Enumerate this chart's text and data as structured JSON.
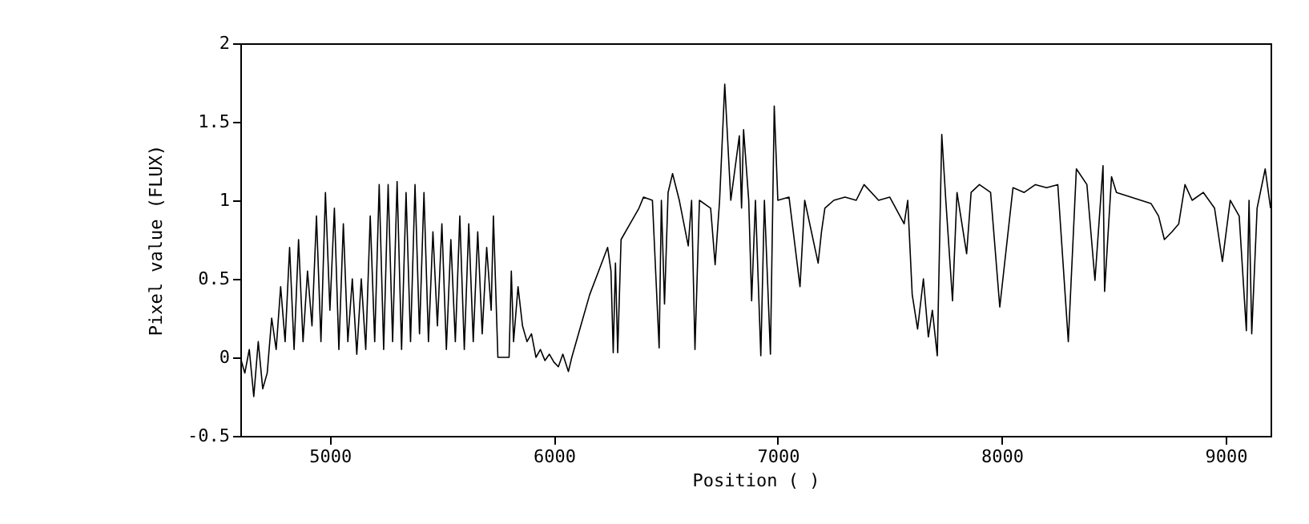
{
  "chart_data": {
    "type": "line",
    "xlabel": "Position ( )",
    "ylabel": "Pixel value (FLUX)",
    "xlim": [
      4600,
      9200
    ],
    "xticks": [
      5000,
      6000,
      7000,
      8000,
      9000
    ],
    "ylim": [
      -0.5,
      2
    ],
    "yticks": [
      -0.5,
      0,
      0.5,
      1,
      1.5,
      2
    ],
    "grid": false,
    "marker": "none",
    "line_style": "solid",
    "x": [
      4600,
      4620,
      4640,
      4660,
      4680,
      4700,
      4720,
      4740,
      4760,
      4780,
      4800,
      4820,
      4840,
      4860,
      4880,
      4900,
      4920,
      4940,
      4960,
      4980,
      5000,
      5020,
      5040,
      5060,
      5080,
      5100,
      5120,
      5140,
      5160,
      5180,
      5200,
      5220,
      5240,
      5260,
      5280,
      5300,
      5320,
      5340,
      5360,
      5380,
      5400,
      5420,
      5440,
      5460,
      5480,
      5500,
      5520,
      5540,
      5560,
      5580,
      5600,
      5620,
      5640,
      5660,
      5680,
      5700,
      5720,
      5730,
      5750,
      5800,
      5810,
      5820,
      5840,
      5860,
      5880,
      5900,
      5920,
      5940,
      5960,
      5980,
      6000,
      6020,
      6040,
      6065,
      6080,
      6120,
      6160,
      6200,
      6240,
      6255,
      6265,
      6275,
      6285,
      6300,
      6340,
      6380,
      6400,
      6440,
      6470,
      6480,
      6494,
      6510,
      6530,
      6560,
      6600,
      6615,
      6630,
      6650,
      6700,
      6720,
      6740,
      6763,
      6790,
      6828,
      6838,
      6847,
      6870,
      6883,
      6900,
      6924,
      6940,
      6967,
      6984,
      7000,
      7050,
      7099,
      7120,
      7180,
      7195,
      7210,
      7250,
      7300,
      7350,
      7385,
      7450,
      7500,
      7564,
      7580,
      7600,
      7624,
      7650,
      7672,
      7690,
      7712,
      7732,
      7750,
      7780,
      7800,
      7843,
      7863,
      7900,
      7950,
      7991,
      8050,
      8100,
      8150,
      8200,
      8250,
      8297,
      8333,
      8380,
      8416,
      8452,
      8459,
      8490,
      8512,
      8666,
      8700,
      8726,
      8760,
      8790,
      8818,
      8850,
      8900,
      8950,
      8985,
      9020,
      9060,
      9092,
      9104,
      9116,
      9140,
      9176,
      9200
    ],
    "series": [
      {
        "color": "#000000",
        "values": [
          0.0,
          -0.1,
          0.05,
          -0.25,
          0.1,
          -0.2,
          -0.1,
          0.25,
          0.05,
          0.45,
          0.1,
          0.7,
          0.05,
          0.75,
          0.1,
          0.55,
          0.2,
          0.9,
          0.1,
          1.05,
          0.3,
          0.95,
          0.05,
          0.85,
          0.1,
          0.5,
          0.02,
          0.5,
          0.05,
          0.9,
          0.1,
          1.1,
          0.05,
          1.1,
          0.1,
          1.12,
          0.05,
          1.05,
          0.1,
          1.1,
          0.15,
          1.05,
          0.1,
          0.8,
          0.2,
          0.85,
          0.05,
          0.75,
          0.1,
          0.9,
          0.05,
          0.85,
          0.1,
          0.8,
          0.15,
          0.7,
          0.3,
          0.9,
          0.0,
          0.0,
          0.55,
          0.1,
          0.45,
          0.2,
          0.1,
          0.15,
          0.0,
          0.05,
          -0.02,
          0.02,
          -0.03,
          -0.06,
          0.02,
          -0.09,
          0.0,
          0.2,
          0.4,
          0.55,
          0.7,
          0.55,
          0.03,
          0.6,
          0.03,
          0.75,
          0.85,
          0.95,
          1.02,
          1.0,
          0.06,
          1.0,
          0.34,
          1.05,
          1.17,
          1.0,
          0.71,
          1.0,
          0.05,
          1.0,
          0.95,
          0.59,
          1.0,
          1.74,
          1.0,
          1.41,
          0.95,
          1.45,
          1.0,
          0.36,
          1.0,
          0.01,
          1.0,
          0.02,
          1.6,
          1.0,
          1.02,
          0.45,
          1.0,
          0.6,
          0.8,
          0.95,
          1.0,
          1.02,
          1.0,
          1.1,
          1.0,
          1.02,
          0.85,
          1.0,
          0.4,
          0.18,
          0.5,
          0.13,
          0.3,
          0.01,
          1.42,
          1.0,
          0.36,
          1.05,
          0.66,
          1.05,
          1.1,
          1.05,
          0.32,
          1.08,
          1.05,
          1.1,
          1.08,
          1.1,
          0.1,
          1.2,
          1.1,
          0.49,
          1.22,
          0.42,
          1.15,
          1.05,
          0.98,
          0.9,
          0.75,
          0.8,
          0.85,
          1.1,
          1.0,
          1.05,
          0.95,
          0.61,
          1.0,
          0.9,
          0.17,
          1.0,
          0.15,
          0.95,
          1.2,
          0.95
        ]
      }
    ]
  }
}
